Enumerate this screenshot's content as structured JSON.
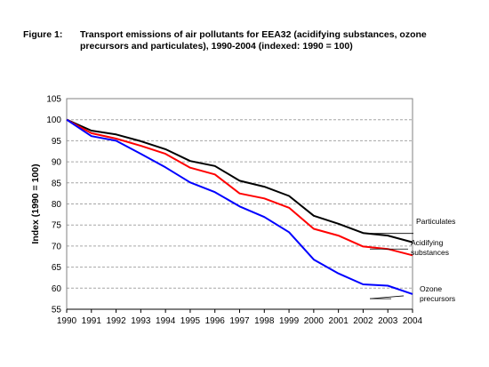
{
  "figure": {
    "label": "Figure 1:",
    "title": "Transport emissions of air pollutants for EEA32 (acidifying substances, ozone precursors and particulates), 1990-2004 (indexed: 1990 = 100)"
  },
  "chart_data": {
    "type": "line",
    "title": "Transport emissions of air pollutants for EEA32 (acidifying substances, ozone precursors and particulates), 1990-2004 (indexed: 1990 = 100)",
    "xlabel": "",
    "ylabel": "Index (1990 = 100)",
    "x": [
      "1990",
      "1991",
      "1992",
      "1993",
      "1994",
      "1995",
      "1996",
      "1997",
      "1998",
      "1999",
      "2000",
      "2001",
      "2002",
      "2003",
      "2004"
    ],
    "ylim": [
      55,
      105
    ],
    "yticks": [
      "55",
      "60",
      "65",
      "70",
      "75",
      "80",
      "85",
      "90",
      "95",
      "100",
      "105"
    ],
    "grid": true,
    "series": [
      {
        "name": "Particulates",
        "color": "#000000",
        "values": [
          100,
          97.4,
          96.5,
          94.9,
          93.0,
          90.2,
          89.0,
          85.5,
          84.1,
          81.9,
          77.2,
          75.3,
          73.1,
          72.5,
          70.9
        ]
      },
      {
        "name": "Acidifying substances",
        "color": "#ff0000",
        "values": [
          100,
          96.8,
          95.5,
          93.8,
          91.9,
          88.6,
          87.0,
          82.5,
          81.3,
          79.1,
          74.1,
          72.5,
          69.9,
          69.3,
          67.8
        ]
      },
      {
        "name": "Ozone precursors",
        "color": "#0000ff",
        "values": [
          100,
          96.1,
          95.0,
          91.9,
          88.7,
          85.1,
          82.8,
          79.4,
          76.9,
          73.3,
          66.8,
          63.5,
          60.9,
          60.6,
          58.6
        ]
      }
    ],
    "labels": [
      {
        "series": 0,
        "lines": [
          "Particulates"
        ]
      },
      {
        "series": 1,
        "lines": [
          "Acidifying",
          "substances"
        ]
      },
      {
        "series": 2,
        "lines": [
          "Ozone",
          "precursors"
        ]
      }
    ]
  }
}
